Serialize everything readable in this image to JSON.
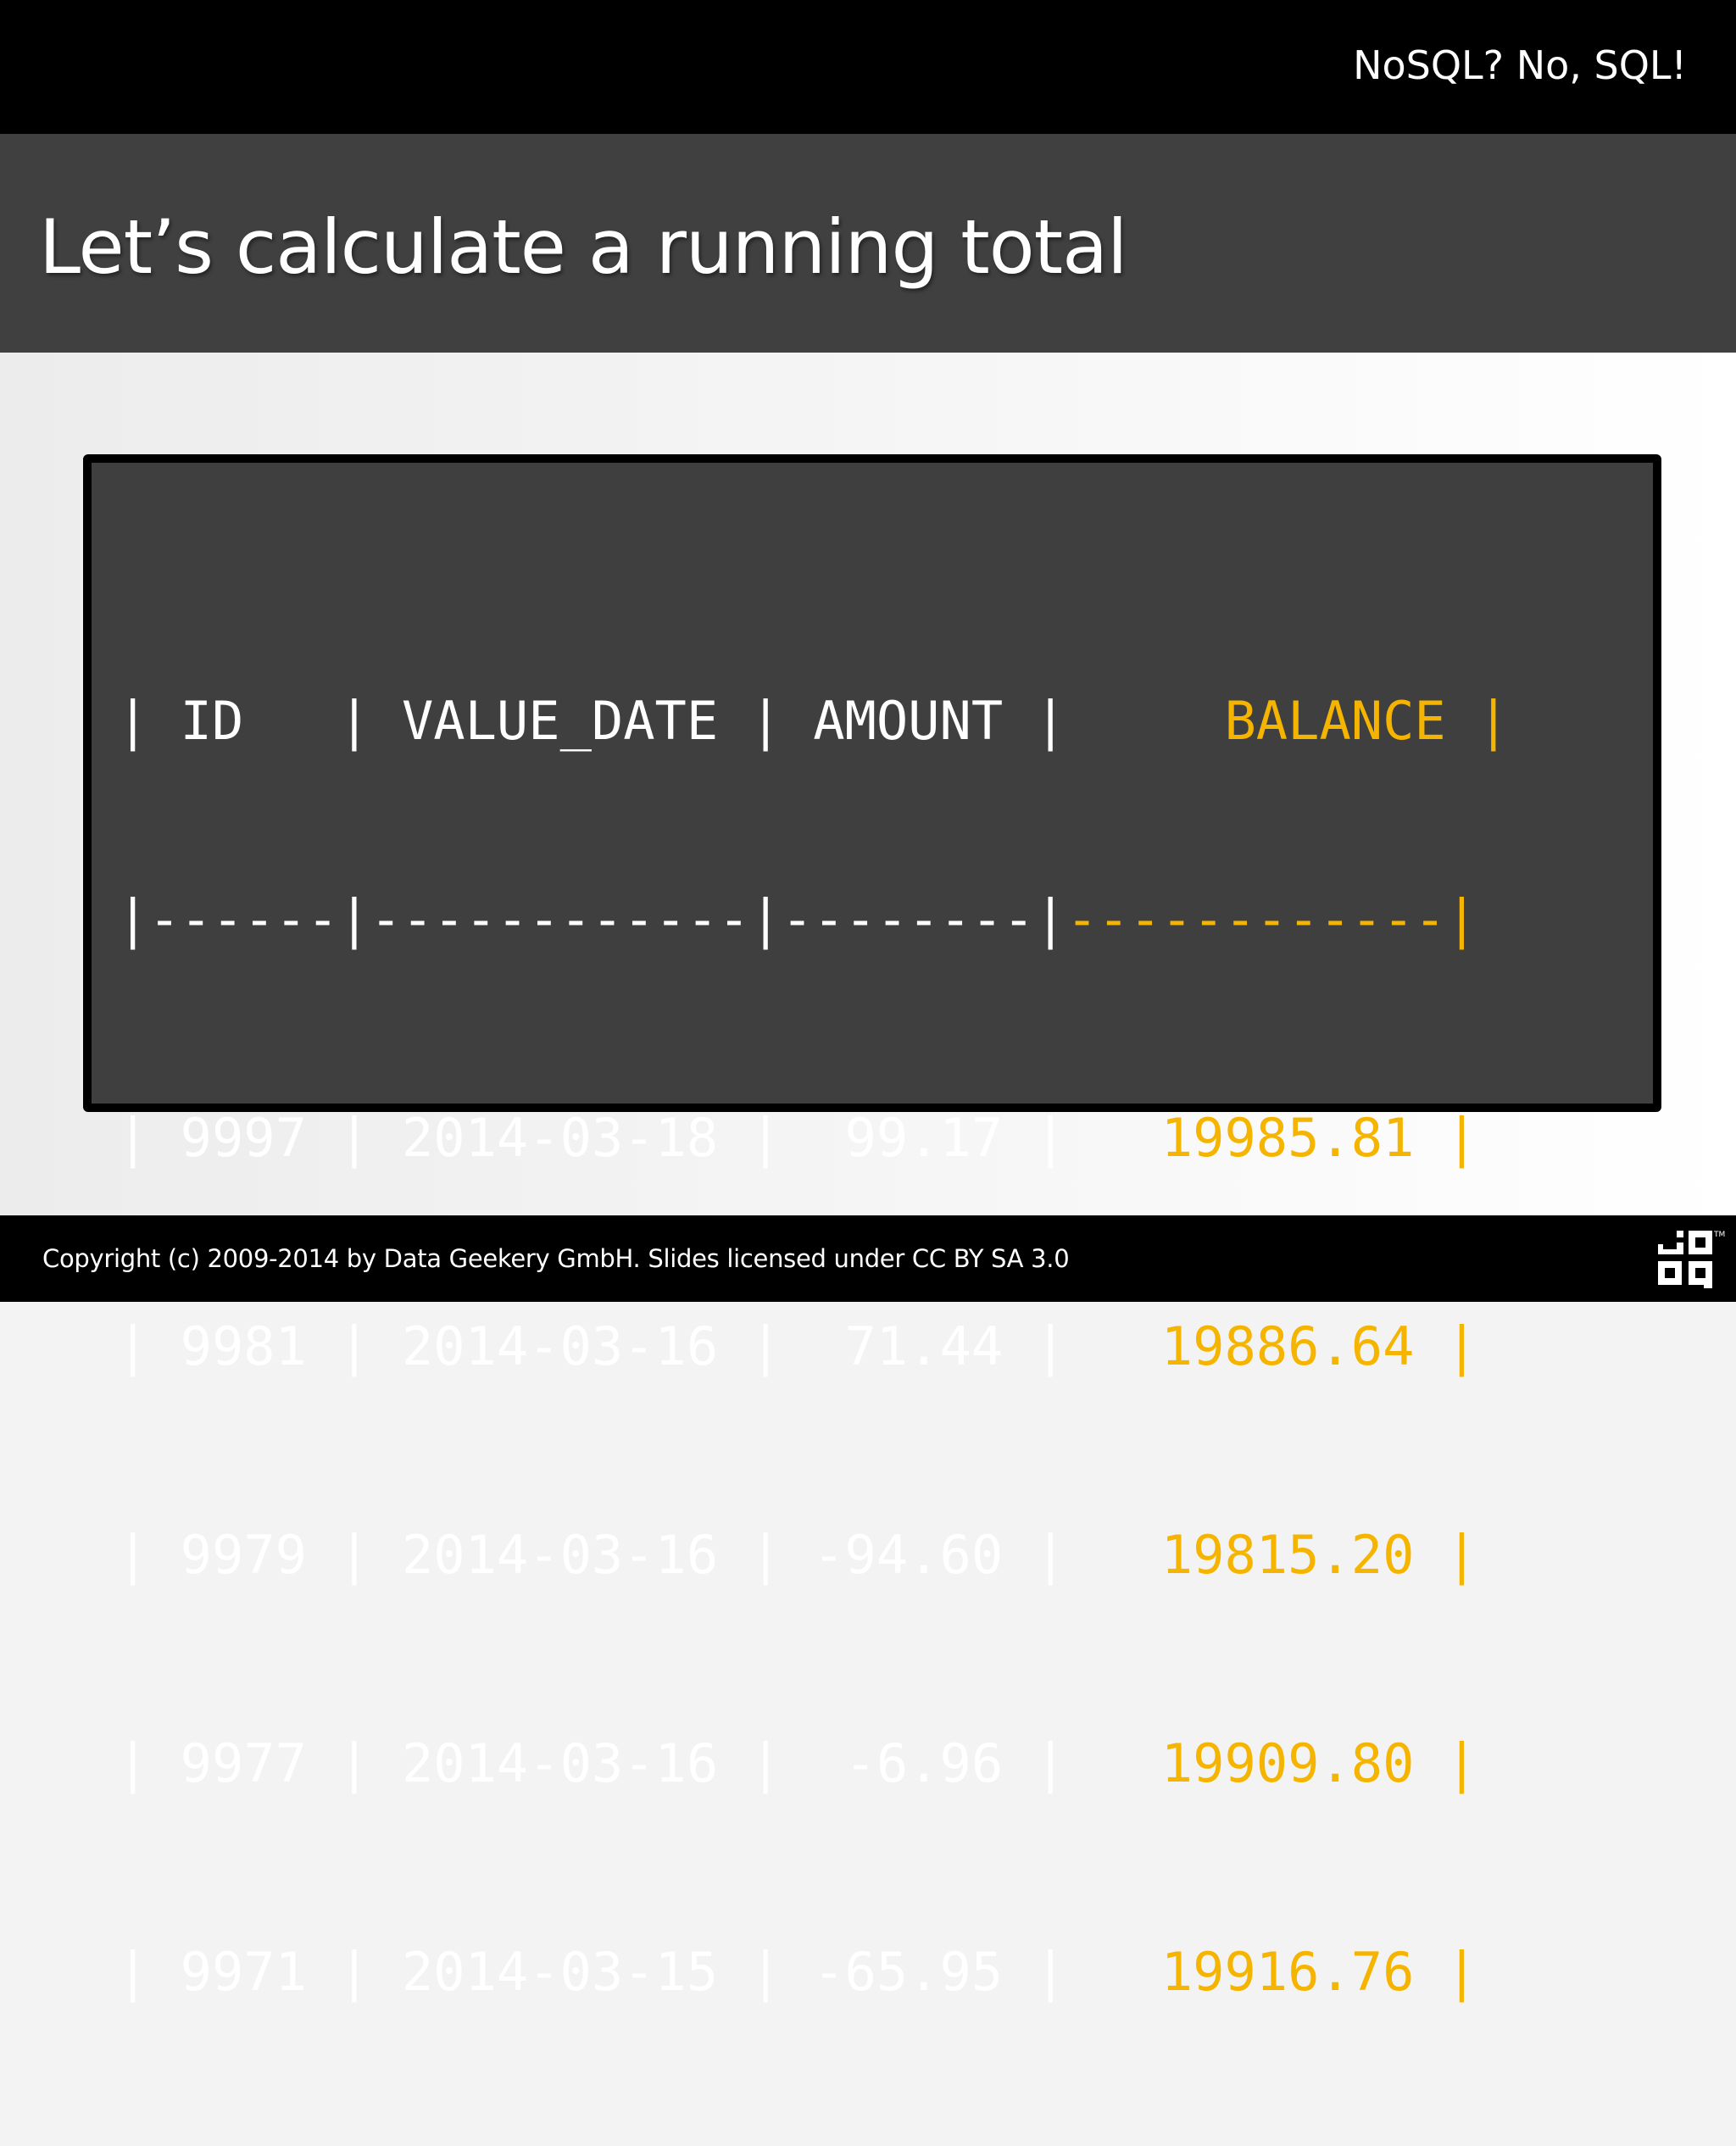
{
  "header": {
    "deck_title": "NoSQL? No, SQL!",
    "slide_title": "Let’s calculate a running total"
  },
  "result_table": {
    "header_prefix": "| ID   | VALUE_DATE | AMOUNT |",
    "header_highlight": "     BALANCE |",
    "separator_prefix": "|------|------------|--------|",
    "separator_highlight": "------------|",
    "rows": [
      {
        "prefix": "| 9997 | 2014-03-18 |  99.17 |",
        "highlight": "   19985.81 |"
      },
      {
        "prefix": "| 9981 | 2014-03-16 |  71.44 |",
        "highlight": "   19886.64 |"
      },
      {
        "prefix": "| 9979 | 2014-03-16 | -94.60 |",
        "highlight": "   19815.20 |"
      },
      {
        "prefix": "| 9977 | 2014-03-16 |  -6.96 |",
        "highlight": "   19909.80 |"
      },
      {
        "prefix": "| 9971 | 2014-03-15 | -65.95 |",
        "highlight": "   19916.76 |"
      }
    ],
    "highlight_color": "#f5b400"
  },
  "footer": {
    "copyright": "Copyright (c) 2009-2014 by Data Geekery GmbH. Slides licensed under CC BY SA 3.0",
    "logo_icon": "jooq-logo-icon",
    "trademark": "TM"
  }
}
